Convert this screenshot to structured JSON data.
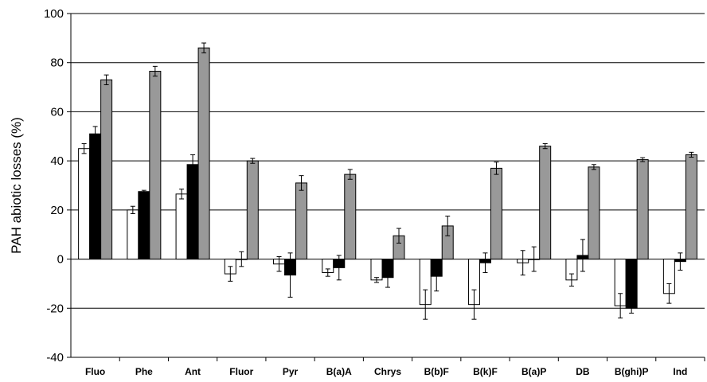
{
  "chart_data": {
    "type": "bar",
    "title": "",
    "xlabel": "",
    "ylabel": "PAH abiotic losses (%)",
    "ylim": [
      -40,
      100
    ],
    "yticks": [
      -40,
      -20,
      0,
      20,
      40,
      60,
      80,
      100
    ],
    "grid": true,
    "legend": "none",
    "categories": [
      "Fluo",
      "Phe",
      "Ant",
      "Fluor",
      "Pyr",
      "B(a)A",
      "Chrys",
      "B(b)F",
      "B(k)F",
      "B(a)P",
      "DB",
      "B(ghi)P",
      "Ind"
    ],
    "series": [
      {
        "color": "#ffffff",
        "values": [
          45,
          20,
          26.5,
          -6,
          -2,
          -5.5,
          -8.5,
          -18.5,
          -18.5,
          -1.5,
          -8.5,
          -19,
          -14
        ],
        "errors": [
          2,
          1.5,
          2,
          3,
          3,
          1.5,
          1,
          6,
          6,
          5,
          2.5,
          5,
          4
        ]
      },
      {
        "color": "#000000",
        "values": [
          51,
          27.5,
          38.5,
          0,
          -6.5,
          -3.5,
          -7.5,
          -7,
          -1.5,
          0,
          1.5,
          -20,
          -1
        ],
        "errors": [
          3,
          0.5,
          4,
          3,
          9,
          5,
          4,
          6,
          4,
          5,
          6.5,
          2,
          3.5
        ]
      },
      {
        "color": "#999999",
        "values": [
          73,
          76.5,
          86,
          40,
          31,
          34.5,
          9.5,
          13.5,
          37,
          46,
          37.5,
          40.5,
          42.5
        ],
        "errors": [
          2,
          2,
          2,
          1,
          3,
          2,
          3,
          4,
          2.5,
          1,
          1,
          0.8,
          1
        ]
      }
    ]
  }
}
